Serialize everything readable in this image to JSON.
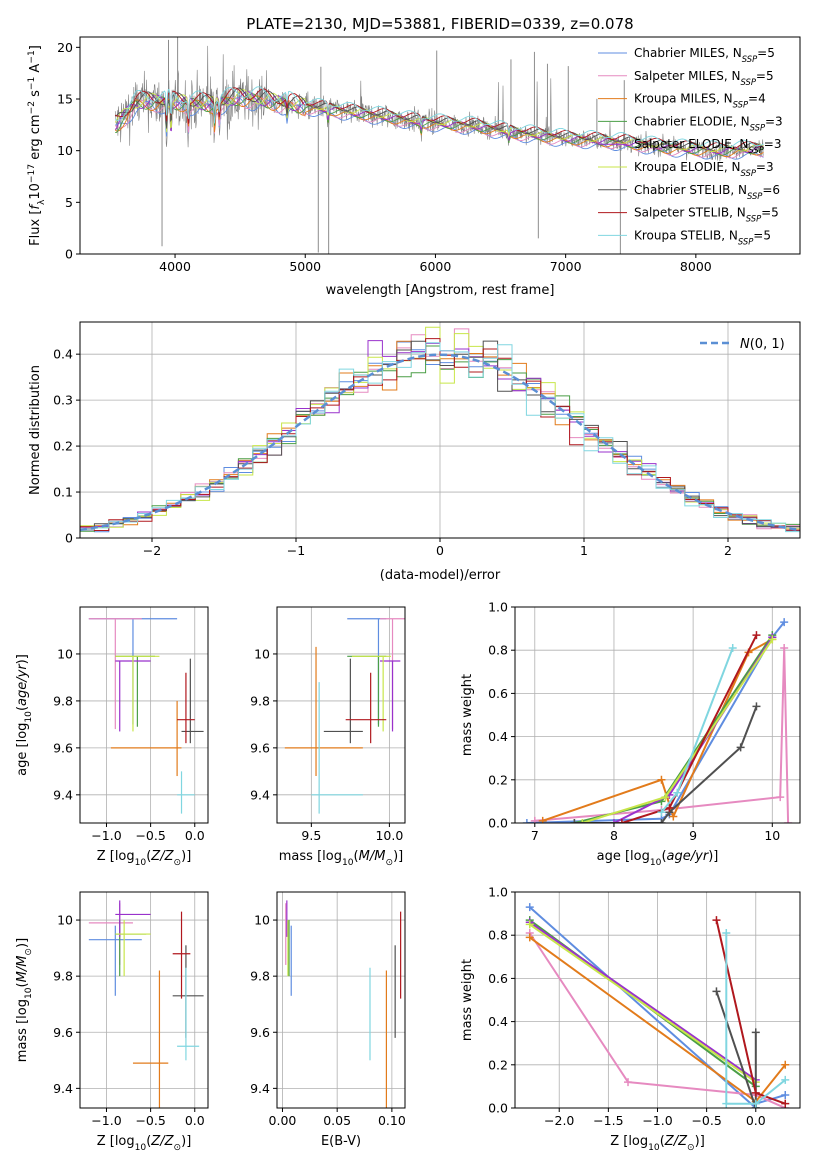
{
  "figure": {
    "title": "PLATE=2130, MJD=53881, FIBERID=0339, z=0.078"
  },
  "legend_labels": [
    "Chabrier MILES, N_SSP=5",
    "Salpeter MILES, N_SSP=5",
    "Kroupa MILES, N_SSP=4",
    "Chabrier ELODIE, N_SSP=3",
    "Salpeter ELODIE, N_SSP=3",
    "Kroupa ELODIE, N_SSP=3",
    "Chabrier STELIB, N_SSP=6",
    "Salpeter STELIB, N_SSP=5",
    "Kroupa STELIB, N_SSP=5"
  ],
  "chart_data": [
    {
      "type": "line",
      "id": "spectrum",
      "xlabel": "wavelength [Angstrom, rest frame]",
      "ylabel": "Flux [f_λ 10^-17 erg cm^-2 s^-1 A^-1]",
      "xlim": [
        3270,
        8800
      ],
      "ylim": [
        0,
        21
      ],
      "xticks": [
        4000,
        5000,
        6000,
        7000,
        8000
      ],
      "yticks": [
        0,
        5,
        10,
        15,
        20
      ],
      "legend_position": "upper right",
      "data_color": "#808080",
      "model_colors": [
        "#5f8de0",
        "#e68ac0",
        "#e27b1b",
        "#4a9e46",
        "#9932cc",
        "#c8e64a",
        "#505050",
        "#b0181e",
        "#80d6e0"
      ],
      "continuum_anchors": [
        [
          3550,
          12.5
        ],
        [
          3700,
          14.6
        ],
        [
          3800,
          14.8
        ],
        [
          4000,
          14.7
        ],
        [
          4300,
          14.5
        ],
        [
          4500,
          15.2
        ],
        [
          4700,
          14.9
        ],
        [
          5000,
          14.3
        ],
        [
          5200,
          14.0
        ],
        [
          5500,
          13.5
        ],
        [
          5900,
          12.8
        ],
        [
          6300,
          12.4
        ],
        [
          6600,
          11.8
        ],
        [
          7000,
          11.2
        ],
        [
          7400,
          10.9
        ],
        [
          7800,
          10.3
        ],
        [
          8200,
          10.0
        ],
        [
          8500,
          10.2
        ]
      ],
      "x_range": [
        3540,
        8520
      ]
    },
    {
      "type": "bar",
      "id": "residuals",
      "xlabel": "(data-model)/error",
      "ylabel": "Normed distribution",
      "xlim": [
        -2.5,
        2.5
      ],
      "ylim": [
        0,
        0.47
      ],
      "xticks": [
        -2,
        -1,
        0,
        1,
        2
      ],
      "yticks": [
        0.0,
        0.1,
        0.2,
        0.3,
        0.4
      ],
      "grid": true,
      "legend_label": "N(0,1)",
      "legend_position": "upper right",
      "bin_edges": [
        -2.5,
        2.5
      ],
      "n_bins": 50,
      "reference_curve": "normal(0,1)"
    },
    {
      "type": "scatter",
      "id": "age_vs_Z",
      "xlabel": "Z [log10(Z/Z_sun)]",
      "ylabel": "age [log10(age/yr)]",
      "xlim": [
        -1.3,
        0.15
      ],
      "ylim": [
        9.28,
        10.2
      ],
      "xticks": [
        -1.0,
        -0.5,
        0.0
      ],
      "yticks": [
        9.4,
        9.6,
        9.8,
        10.0
      ],
      "grid": true,
      "points": [
        {
          "x": -0.7,
          "y": 10.15,
          "xerr": [
            0.5,
            0.5
          ],
          "yerr": [
            0.45,
            0.0
          ]
        },
        {
          "x": -0.9,
          "y": 10.15,
          "xerr": [
            0.3,
            0.3
          ],
          "yerr": [
            0.47,
            0.0
          ]
        },
        {
          "x": -0.2,
          "y": 9.6,
          "xerr": [
            0.75,
            0.05
          ],
          "yerr": [
            0.12,
            0.2
          ]
        },
        {
          "x": -0.65,
          "y": 9.99,
          "xerr": [
            0.25,
            0.2
          ],
          "yerr": [
            0.3,
            0.0
          ]
        },
        {
          "x": -0.85,
          "y": 9.97,
          "xerr": [
            0.05,
            0.35
          ],
          "yerr": [
            0.3,
            0.0
          ]
        },
        {
          "x": -0.7,
          "y": 9.99,
          "xerr": [
            0.2,
            0.3
          ],
          "yerr": [
            0.32,
            0.0
          ]
        },
        {
          "x": -0.05,
          "y": 9.67,
          "xerr": [
            0.1,
            0.15
          ],
          "yerr": [
            0.05,
            0.31
          ]
        },
        {
          "x": -0.1,
          "y": 9.72,
          "xerr": [
            0.1,
            0.1
          ],
          "yerr": [
            0.1,
            0.2
          ]
        },
        {
          "x": -0.15,
          "y": 9.4,
          "xerr": [
            0.05,
            0.15
          ],
          "yerr": [
            0.08,
            0.1
          ]
        }
      ]
    },
    {
      "type": "scatter",
      "id": "age_vs_mass",
      "xlabel": "mass [log10(M/M_sun)]",
      "ylabel": "",
      "xlim": [
        9.28,
        10.1
      ],
      "ylim": [
        9.28,
        10.2
      ],
      "xticks": [
        9.5,
        10.0
      ],
      "yticks": [
        9.4,
        9.6,
        9.8,
        10.0
      ],
      "grid": true,
      "points": [
        {
          "x": 9.93,
          "y": 10.15,
          "xerr": [
            0.2,
            0.05
          ],
          "yerr": [
            0.45,
            0.0
          ]
        },
        {
          "x": 10.02,
          "y": 10.15,
          "xerr": [
            0.08,
            0.12
          ],
          "yerr": [
            0.47,
            0.0
          ]
        },
        {
          "x": 9.53,
          "y": 9.6,
          "xerr": [
            0.2,
            0.3
          ],
          "yerr": [
            0.12,
            0.43
          ]
        },
        {
          "x": 9.93,
          "y": 9.99,
          "xerr": [
            0.2,
            0.05
          ],
          "yerr": [
            0.3,
            0.0
          ]
        },
        {
          "x": 10.02,
          "y": 9.97,
          "xerr": [
            0.08,
            0.05
          ],
          "yerr": [
            0.3,
            0.0
          ]
        },
        {
          "x": 9.96,
          "y": 9.99,
          "xerr": [
            0.2,
            0.05
          ],
          "yerr": [
            0.32,
            0.0
          ]
        },
        {
          "x": 9.75,
          "y": 9.67,
          "xerr": [
            0.17,
            0.08
          ],
          "yerr": [
            0.05,
            0.31
          ]
        },
        {
          "x": 9.88,
          "y": 9.72,
          "xerr": [
            0.16,
            0.1
          ],
          "yerr": [
            0.1,
            0.2
          ]
        },
        {
          "x": 9.55,
          "y": 9.4,
          "xerr": [
            0.05,
            0.28
          ],
          "yerr": [
            0.08,
            0.48
          ]
        }
      ]
    },
    {
      "type": "line",
      "id": "massweight_vs_age",
      "xlabel": "age [log10(age/yr)]",
      "ylabel": "mass weight",
      "xlim": [
        6.75,
        10.35
      ],
      "ylim": [
        0.0,
        1.0
      ],
      "xticks": [
        7,
        8,
        9,
        10
      ],
      "yticks": [
        0.0,
        0.2,
        0.4,
        0.6,
        0.8,
        1.0
      ],
      "grid": true,
      "series": [
        {
          "x": [
            6.9,
            8.6,
            8.7,
            10.0,
            10.15
          ],
          "y": [
            0.0,
            0.02,
            0.04,
            0.86,
            0.93
          ]
        },
        {
          "x": [
            7.0,
            8.6,
            10.1,
            10.15,
            10.2
          ],
          "y": [
            0.01,
            0.06,
            0.12,
            0.81,
            0.0
          ]
        },
        {
          "x": [
            7.1,
            8.6,
            8.75,
            9.7,
            10.0
          ],
          "y": [
            0.01,
            0.2,
            0.03,
            0.79,
            0.85
          ]
        },
        {
          "x": [
            7.5,
            8.6,
            10.0
          ],
          "y": [
            0.0,
            0.1,
            0.87
          ]
        },
        {
          "x": [
            8.0,
            8.7,
            10.0
          ],
          "y": [
            0.0,
            0.13,
            0.86
          ]
        },
        {
          "x": [
            7.6,
            8.65,
            10.0
          ],
          "y": [
            0.0,
            0.12,
            0.85
          ]
        },
        {
          "x": [
            7.5,
            8.6,
            8.7,
            9.6,
            9.8
          ],
          "y": [
            0.0,
            0.0,
            0.05,
            0.35,
            0.54
          ]
        },
        {
          "x": [
            8.1,
            8.7,
            9.8
          ],
          "y": [
            0.0,
            0.07,
            0.87
          ]
        },
        {
          "x": [
            8.6,
            8.8,
            9.5
          ],
          "y": [
            0.05,
            0.14,
            0.81
          ]
        }
      ]
    },
    {
      "type": "scatter",
      "id": "mass_vs_Z",
      "xlabel": "Z [log10(Z/Z_sun)]",
      "ylabel": "mass [log10(M/M_sun)]",
      "xlim": [
        -1.3,
        0.15
      ],
      "ylim": [
        9.33,
        10.1
      ],
      "xticks": [
        -1.0,
        -0.5,
        0.0
      ],
      "yticks": [
        9.4,
        9.6,
        9.8,
        10.0
      ],
      "grid": true,
      "points": [
        {
          "x": -0.9,
          "y": 9.93,
          "xerr": [
            0.3,
            0.3
          ],
          "yerr": [
            0.2,
            0.05
          ]
        },
        {
          "x": -0.85,
          "y": 9.99,
          "xerr": [
            0.35,
            0.15
          ],
          "yerr": [
            0.15,
            0.07
          ]
        },
        {
          "x": -0.4,
          "y": 9.49,
          "xerr": [
            0.3,
            0.1
          ],
          "yerr": [
            0.3,
            0.33
          ]
        },
        {
          "x": -0.85,
          "y": 9.95,
          "xerr": [
            0.05,
            0.3
          ],
          "yerr": [
            0.15,
            0.05
          ]
        },
        {
          "x": -0.85,
          "y": 10.02,
          "xerr": [
            0.05,
            0.35
          ],
          "yerr": [
            0.08,
            0.05
          ]
        },
        {
          "x": -0.8,
          "y": 9.95,
          "xerr": [
            0.1,
            0.3
          ],
          "yerr": [
            0.15,
            0.05
          ]
        },
        {
          "x": -0.1,
          "y": 9.73,
          "xerr": [
            0.15,
            0.2
          ],
          "yerr": [
            0.15,
            0.18
          ]
        },
        {
          "x": -0.15,
          "y": 9.88,
          "xerr": [
            0.1,
            0.1
          ],
          "yerr": [
            0.16,
            0.15
          ]
        },
        {
          "x": -0.1,
          "y": 9.55,
          "xerr": [
            0.1,
            0.15
          ],
          "yerr": [
            0.05,
            0.28
          ]
        }
      ]
    },
    {
      "type": "scatter",
      "id": "mass_vs_ebv",
      "xlabel": "E(B-V)",
      "ylabel": "",
      "xlim": [
        -0.005,
        0.112
      ],
      "ylim": [
        9.33,
        10.1
      ],
      "xticks": [
        0.0,
        0.05,
        0.1
      ],
      "yticks": [
        9.4,
        9.6,
        9.8,
        10.0
      ],
      "grid": true,
      "points": [
        {
          "x": 0.008,
          "y": 9.93,
          "xerr": [
            0.0,
            0.0
          ],
          "yerr": [
            0.2,
            0.05
          ]
        },
        {
          "x": 0.003,
          "y": 9.99,
          "xerr": [
            0.0,
            0.0
          ],
          "yerr": [
            0.15,
            0.07
          ]
        },
        {
          "x": 0.095,
          "y": 9.49,
          "xerr": [
            0.0,
            0.0
          ],
          "yerr": [
            0.3,
            0.33
          ]
        },
        {
          "x": 0.006,
          "y": 9.95,
          "xerr": [
            0.0,
            0.0
          ],
          "yerr": [
            0.15,
            0.05
          ]
        },
        {
          "x": 0.004,
          "y": 10.02,
          "xerr": [
            0.0,
            0.0
          ],
          "yerr": [
            0.08,
            0.05
          ]
        },
        {
          "x": 0.005,
          "y": 9.95,
          "xerr": [
            0.0,
            0.0
          ],
          "yerr": [
            0.15,
            0.05
          ]
        },
        {
          "x": 0.103,
          "y": 9.73,
          "xerr": [
            0.0,
            0.0
          ],
          "yerr": [
            0.15,
            0.18
          ]
        },
        {
          "x": 0.108,
          "y": 9.88,
          "xerr": [
            0.0,
            0.0
          ],
          "yerr": [
            0.16,
            0.15
          ]
        },
        {
          "x": 0.08,
          "y": 9.55,
          "xerr": [
            0.0,
            0.0
          ],
          "yerr": [
            0.05,
            0.28
          ]
        }
      ]
    },
    {
      "type": "line",
      "id": "massweight_vs_Z",
      "xlabel": "Z [log10(Z/Z_sun)]",
      "ylabel": "mass weight",
      "xlim": [
        -2.45,
        0.45
      ],
      "ylim": [
        0.0,
        1.0
      ],
      "xticks": [
        -2.0,
        -1.5,
        -1.0,
        -0.5,
        0.0
      ],
      "yticks": [
        0.0,
        0.2,
        0.4,
        0.6,
        0.8,
        1.0
      ],
      "grid": true,
      "series": [
        {
          "x": [
            -2.3,
            0.0,
            0.0,
            0.3
          ],
          "y": [
            0.93,
            0.0,
            0.02,
            0.06
          ]
        },
        {
          "x": [
            -2.3,
            -1.3,
            0.0,
            0.3
          ],
          "y": [
            0.81,
            0.12,
            0.06,
            0.0
          ]
        },
        {
          "x": [
            -2.3,
            0.0,
            0.3
          ],
          "y": [
            0.79,
            0.03,
            0.2
          ]
        },
        {
          "x": [
            -2.3,
            0.0
          ],
          "y": [
            0.87,
            0.1
          ]
        },
        {
          "x": [
            -2.3,
            0.0
          ],
          "y": [
            0.86,
            0.13
          ]
        },
        {
          "x": [
            -2.3,
            0.0
          ],
          "y": [
            0.85,
            0.12
          ]
        },
        {
          "x": [
            -0.4,
            0.0,
            0.0
          ],
          "y": [
            0.54,
            0.0,
            0.35
          ]
        },
        {
          "x": [
            -0.4,
            0.0,
            0.3
          ],
          "y": [
            0.87,
            0.07,
            0.02
          ]
        },
        {
          "x": [
            -0.3,
            -0.3,
            0.0,
            0.3
          ],
          "y": [
            0.81,
            0.02,
            0.02,
            0.13
          ]
        }
      ]
    }
  ]
}
